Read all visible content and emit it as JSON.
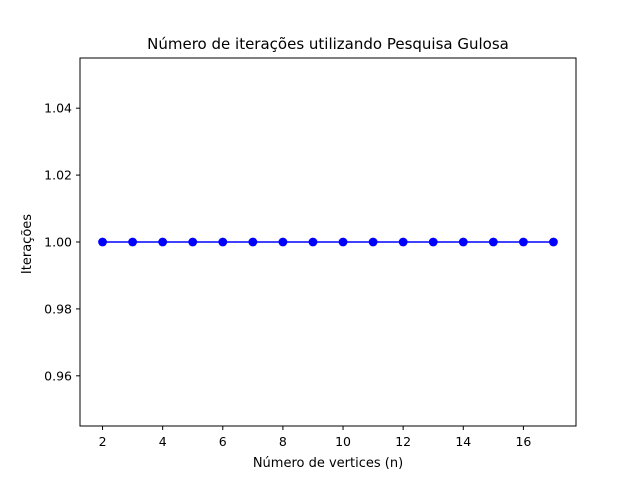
{
  "chart_data": {
    "type": "line",
    "title": "Número de iterações utilizando Pesquisa Gulosa",
    "xlabel": "Número de vertices (n)",
    "ylabel": "Iterações",
    "xlim": [
      1.25,
      17.75
    ],
    "ylim": [
      0.945,
      1.055
    ],
    "x_ticks": [
      2,
      4,
      6,
      8,
      10,
      12,
      14,
      16
    ],
    "y_ticks": [
      0.96,
      0.98,
      1.0,
      1.02,
      1.04
    ],
    "y_tick_labels": [
      "0.96",
      "0.98",
      "1.00",
      "1.02",
      "1.04"
    ],
    "grid": false,
    "color": "#0000ff",
    "marker": "circle",
    "x": [
      2,
      3,
      4,
      5,
      6,
      7,
      8,
      9,
      10,
      11,
      12,
      13,
      14,
      15,
      16,
      17
    ],
    "y": [
      1,
      1,
      1,
      1,
      1,
      1,
      1,
      1,
      1,
      1,
      1,
      1,
      1,
      1,
      1,
      1
    ]
  }
}
